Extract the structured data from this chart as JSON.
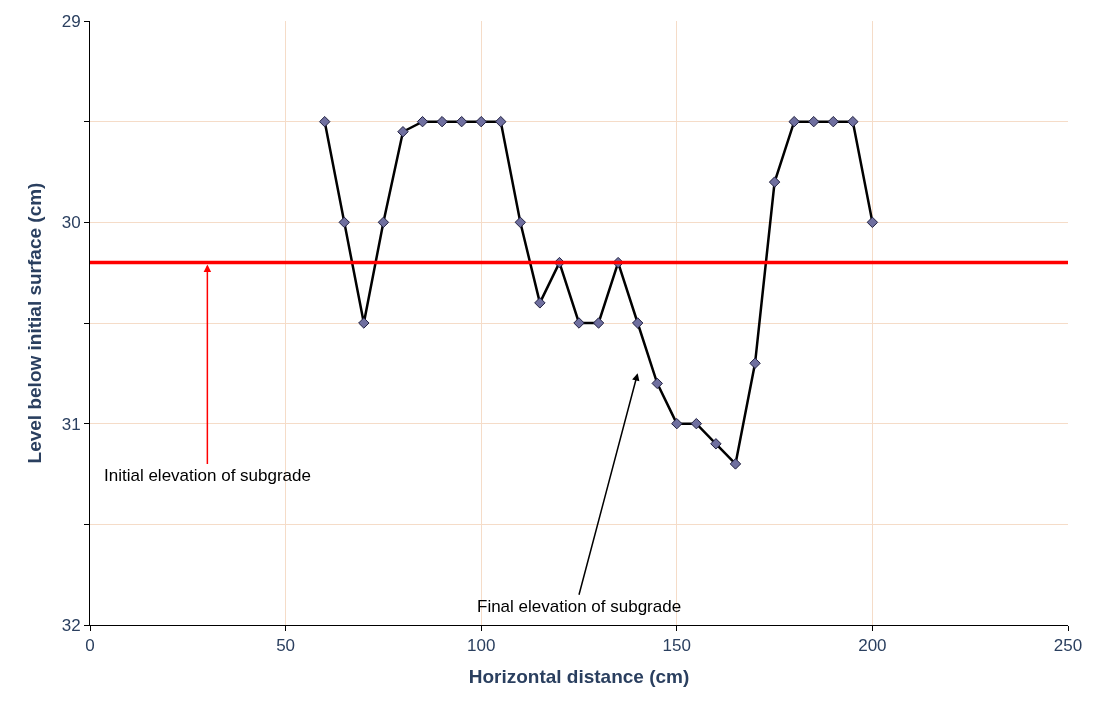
{
  "chart_data": {
    "type": "line",
    "xlabel": "Horizontal distance (cm)",
    "ylabel": "Level below initial surface (cm)",
    "x": [
      60,
      65,
      70,
      75,
      80,
      85,
      90,
      95,
      100,
      105,
      110,
      115,
      120,
      125,
      130,
      135,
      140,
      145,
      150,
      155,
      160,
      165,
      170,
      175,
      180,
      185,
      190,
      195,
      200
    ],
    "series": [
      {
        "color": "#000000",
        "values": [
          29.5,
          30.0,
          30.5,
          30.0,
          29.55,
          29.5,
          29.5,
          29.5,
          29.5,
          29.5,
          30.0,
          30.4,
          30.2,
          30.5,
          30.5,
          30.2,
          30.5,
          30.8,
          31.0,
          31.0,
          31.1,
          31.2,
          30.7,
          29.8,
          29.5,
          29.5,
          29.5,
          29.5,
          30.0
        ]
      }
    ],
    "marker": "diamond",
    "line_style": "solid",
    "grid": true,
    "xlim": [
      0,
      250
    ],
    "xticks": [
      0,
      50,
      100,
      150,
      200,
      250
    ],
    "ylim": [
      32,
      29
    ],
    "yticks": [
      29,
      {
        "value": 29.5,
        "label": null
      },
      30,
      {
        "value": 30.5,
        "label": null
      },
      31,
      {
        "value": 31.5,
        "label": null
      },
      32
    ],
    "ref_lines": [
      {
        "axis": "y",
        "value": 30.2,
        "color": "#ff0000"
      }
    ],
    "annotations": [
      {
        "text": "Initial elevation of subgrade",
        "x": 30,
        "y": 30.2
      },
      "Final elevation of subgrade"
    ]
  }
}
